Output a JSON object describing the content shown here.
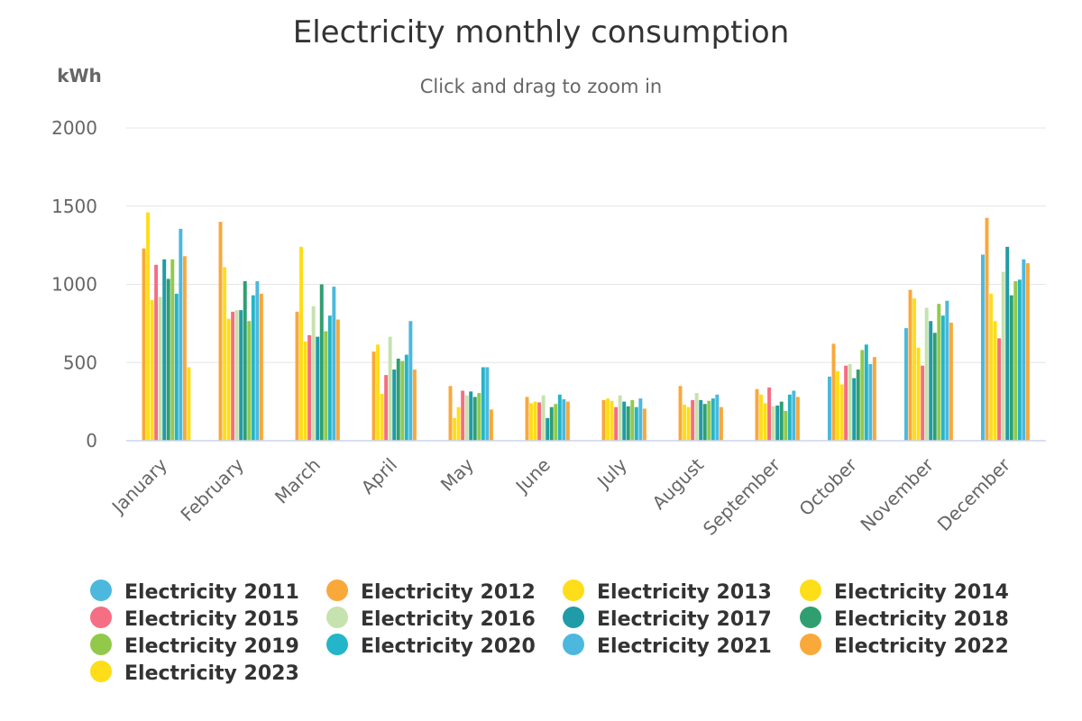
{
  "chart_data": {
    "type": "bar",
    "title": "Electricity monthly consumption",
    "subtitle": "Click and drag to zoom in",
    "ylabel": "kWh",
    "xlabel": "",
    "ylim": [
      0,
      2000
    ],
    "yticks": [
      "0",
      "500",
      "1000",
      "1500",
      "2000"
    ],
    "grid": true,
    "legend_position": "bottom",
    "categories": [
      "January",
      "February",
      "March",
      "April",
      "May",
      "June",
      "July",
      "August",
      "September",
      "October",
      "November",
      "December"
    ],
    "series": [
      {
        "name": "Electricity 2011",
        "color": "#4cb8de",
        "values": [
          null,
          null,
          null,
          null,
          null,
          null,
          null,
          null,
          null,
          410,
          720,
          1190
        ]
      },
      {
        "name": "Electricity 2012",
        "color": "#f9a83a",
        "values": [
          1230,
          1400,
          825,
          570,
          350,
          280,
          260,
          350,
          330,
          620,
          965,
          1425
        ]
      },
      {
        "name": "Electricity 2013",
        "color": "#fedd19",
        "values": [
          1460,
          1110,
          1240,
          615,
          145,
          240,
          270,
          230,
          295,
          445,
          910,
          940
        ]
      },
      {
        "name": "Electricity 2014",
        "color": "#fedd19",
        "values": [
          900,
          780,
          635,
          300,
          215,
          250,
          255,
          215,
          240,
          360,
          595,
          765
        ]
      },
      {
        "name": "Electricity 2015",
        "color": "#f56e84",
        "values": [
          1125,
          825,
          675,
          420,
          320,
          245,
          215,
          260,
          340,
          480,
          480,
          655
        ]
      },
      {
        "name": "Electricity 2016",
        "color": "#c6e2ae",
        "values": [
          920,
          835,
          860,
          665,
          290,
          290,
          290,
          305,
          220,
          490,
          850,
          1080
        ]
      },
      {
        "name": "Electricity 2017",
        "color": "#1f9ca8",
        "values": [
          1160,
          835,
          665,
          455,
          315,
          145,
          250,
          260,
          225,
          400,
          765,
          1240
        ]
      },
      {
        "name": "Electricity 2018",
        "color": "#2f9f71",
        "values": [
          1035,
          1020,
          1000,
          525,
          280,
          215,
          220,
          235,
          250,
          455,
          690,
          930
        ]
      },
      {
        "name": "Electricity 2019",
        "color": "#93c94b",
        "values": [
          1160,
          765,
          700,
          510,
          305,
          235,
          260,
          255,
          190,
          580,
          875,
          1020
        ]
      },
      {
        "name": "Electricity 2020",
        "color": "#23b5c9",
        "values": [
          940,
          930,
          800,
          550,
          470,
          295,
          215,
          270,
          295,
          615,
          800,
          1030
        ]
      },
      {
        "name": "Electricity 2021",
        "color": "#4cb8de",
        "values": [
          1355,
          1020,
          985,
          765,
          470,
          265,
          270,
          295,
          320,
          490,
          895,
          1160
        ]
      },
      {
        "name": "Electricity 2022",
        "color": "#f9a83a",
        "values": [
          1180,
          940,
          775,
          455,
          200,
          250,
          205,
          215,
          280,
          535,
          755,
          1135
        ]
      },
      {
        "name": "Electricity 2023",
        "color": "#fedd19",
        "values": [
          470,
          null,
          null,
          null,
          null,
          null,
          null,
          null,
          null,
          null,
          null,
          null
        ]
      }
    ]
  }
}
